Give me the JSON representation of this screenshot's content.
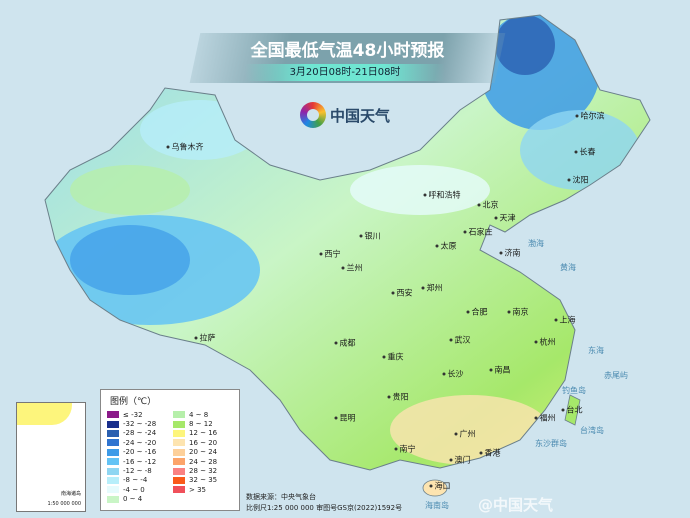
{
  "header": {
    "title": "全国最低气温48小时预报",
    "subtitle": "3月20日08时-21日08时"
  },
  "brand": {
    "logo_text": "中国天气",
    "watermark": "@中国天气"
  },
  "cities": [
    "乌鲁木齐",
    "哈尔滨",
    "长春",
    "沈阳",
    "呼和浩特",
    "北京",
    "天津",
    "石家庄",
    "太原",
    "济南",
    "银川",
    "西宁",
    "兰州",
    "西安",
    "郑州",
    "合肥",
    "南京",
    "上海",
    "拉萨",
    "成都",
    "重庆",
    "武汉",
    "杭州",
    "长沙",
    "南昌",
    "贵阳",
    "福州",
    "台北",
    "昆明",
    "南宁",
    "广州",
    "香港",
    "澳门",
    "海口"
  ],
  "seas": [
    "渤海",
    "黄海",
    "东海",
    "钓鱼岛",
    "赤尾屿",
    "台湾岛",
    "东沙群岛",
    "海南岛",
    "南海"
  ],
  "legend": {
    "title": "图例（℃）",
    "items": [
      {
        "label": "≤ -32",
        "color": "#8b1a89"
      },
      {
        "label": "-32 ~ -28",
        "color": "#1a2f8c"
      },
      {
        "label": "-28 ~ -24",
        "color": "#2a5fb0"
      },
      {
        "label": "-24 ~ -20",
        "color": "#2f74d0"
      },
      {
        "label": "-20 ~ -16",
        "color": "#3d9be8"
      },
      {
        "label": "-16 ~ -12",
        "color": "#63c3f5"
      },
      {
        "label": "-12 ~ -8",
        "color": "#8fd6f2"
      },
      {
        "label": "-8 ~ -4",
        "color": "#b7eefa"
      },
      {
        "label": "-4 ~ 0",
        "color": "#e6fbfd"
      },
      {
        "label": "0 ~ 4",
        "color": "#c9f5c6"
      },
      {
        "label": "4 ~ 8",
        "color": "#b6efaa"
      },
      {
        "label": "8 ~ 12",
        "color": "#a6e86a"
      },
      {
        "label": "12 ~ 16",
        "color": "#fdf57c"
      },
      {
        "label": "16 ~ 20",
        "color": "#fde4b0"
      },
      {
        "label": "20 ~ 24",
        "color": "#fdd09a"
      },
      {
        "label": "24 ~ 28",
        "color": "#fca46a"
      },
      {
        "label": "28 ~ 32",
        "color": "#fa8282"
      },
      {
        "label": "32 ~ 35",
        "color": "#fa5a1a"
      },
      {
        "label": "> 35",
        "color": "#f0505a"
      }
    ]
  },
  "footer": {
    "source": "数据来源：中央气象台",
    "scale": "比例尺1:25 000 000  审图号GS京(2022)1592号"
  },
  "inset": {
    "title": "南海诸岛",
    "scale": "1:50 000 000"
  }
}
